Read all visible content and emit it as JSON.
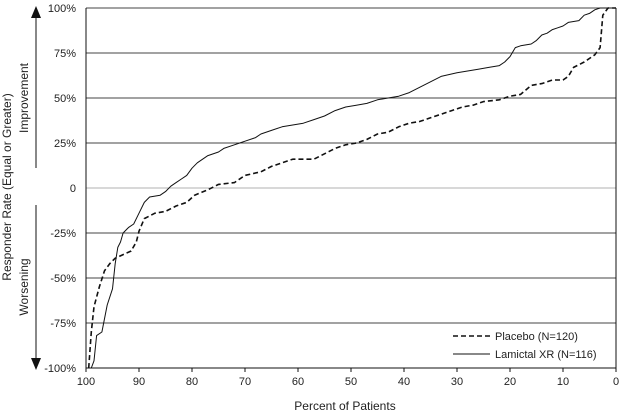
{
  "chart_data": {
    "type": "line",
    "xlabel": "Percent of Patients",
    "ylabel": "Responder Rate (Equal or Greater)",
    "side_labels": {
      "top": "Improvement",
      "bottom": "Worsening"
    },
    "x_reversed": true,
    "xlim": [
      100,
      0
    ],
    "ylim": [
      -100,
      100
    ],
    "x_ticks": [
      {
        "value": 100,
        "label": "100"
      },
      {
        "value": 90,
        "label": "90"
      },
      {
        "value": 80,
        "label": "80"
      },
      {
        "value": 70,
        "label": "70"
      },
      {
        "value": 60,
        "label": "60"
      },
      {
        "value": 50,
        "label": "50"
      },
      {
        "value": 40,
        "label": "40"
      },
      {
        "value": 30,
        "label": "30"
      },
      {
        "value": 20,
        "label": "20"
      },
      {
        "value": 10,
        "label": "10"
      },
      {
        "value": 0,
        "label": "0"
      }
    ],
    "y_ticks": [
      {
        "value": 100,
        "label": "100%"
      },
      {
        "value": 75,
        "label": "75%"
      },
      {
        "value": 50,
        "label": "50%"
      },
      {
        "value": 25,
        "label": "25%"
      },
      {
        "value": 0,
        "label": "0"
      },
      {
        "value": -25,
        "label": "-25%"
      },
      {
        "value": -50,
        "label": "-50%"
      },
      {
        "value": -75,
        "label": "-75%"
      },
      {
        "value": -100,
        "label": "-100%"
      }
    ],
    "grid": "horizontal",
    "legend_position": "bottom-right",
    "series": [
      {
        "name": "Placebo (N=120)",
        "style": "dashed",
        "color": "#111111",
        "points": [
          [
            99.5,
            -100
          ],
          [
            99,
            -80
          ],
          [
            98.5,
            -66
          ],
          [
            97.5,
            -55
          ],
          [
            96.5,
            -46
          ],
          [
            95.5,
            -42
          ],
          [
            94.5,
            -39
          ],
          [
            93,
            -37
          ],
          [
            91.5,
            -35
          ],
          [
            90.5,
            -30
          ],
          [
            90,
            -24
          ],
          [
            89,
            -17
          ],
          [
            87,
            -14
          ],
          [
            85,
            -13
          ],
          [
            83,
            -10
          ],
          [
            81,
            -8
          ],
          [
            79.5,
            -4
          ],
          [
            77,
            -1
          ],
          [
            75,
            2
          ],
          [
            72,
            3
          ],
          [
            70,
            7
          ],
          [
            67,
            9
          ],
          [
            65,
            12
          ],
          [
            63,
            14
          ],
          [
            61,
            16
          ],
          [
            59,
            16
          ],
          [
            57,
            16
          ],
          [
            55,
            19
          ],
          [
            53,
            22
          ],
          [
            51,
            24
          ],
          [
            49,
            25
          ],
          [
            47,
            27
          ],
          [
            45,
            30
          ],
          [
            43,
            31
          ],
          [
            41,
            34
          ],
          [
            39,
            36
          ],
          [
            37,
            37
          ],
          [
            35,
            39
          ],
          [
            33,
            41
          ],
          [
            31,
            43
          ],
          [
            29,
            45
          ],
          [
            27,
            46
          ],
          [
            25,
            48
          ],
          [
            22,
            49
          ],
          [
            20,
            51
          ],
          [
            18,
            52
          ],
          [
            16,
            57
          ],
          [
            14,
            58
          ],
          [
            12,
            60
          ],
          [
            10,
            60
          ],
          [
            9,
            62
          ],
          [
            8,
            67
          ],
          [
            6,
            70
          ],
          [
            4,
            74
          ],
          [
            3,
            78
          ],
          [
            2.5,
            96
          ],
          [
            1.5,
            100
          ],
          [
            0,
            100
          ]
        ]
      },
      {
        "name": "Lamictal XR (N=116)",
        "style": "solid",
        "color": "#111111",
        "points": [
          [
            99,
            -100
          ],
          [
            98.5,
            -96
          ],
          [
            98,
            -82
          ],
          [
            97,
            -80
          ],
          [
            96,
            -65
          ],
          [
            95,
            -56
          ],
          [
            94.5,
            -42
          ],
          [
            94,
            -33
          ],
          [
            93.5,
            -30
          ],
          [
            93,
            -25
          ],
          [
            92,
            -22
          ],
          [
            91,
            -20
          ],
          [
            90,
            -14
          ],
          [
            89,
            -8
          ],
          [
            88,
            -5
          ],
          [
            86,
            -4
          ],
          [
            85,
            -2
          ],
          [
            84,
            1
          ],
          [
            83,
            3
          ],
          [
            82,
            5
          ],
          [
            81,
            7
          ],
          [
            80,
            11
          ],
          [
            79,
            14
          ],
          [
            78,
            16
          ],
          [
            77,
            18
          ],
          [
            75,
            20
          ],
          [
            74,
            22
          ],
          [
            72,
            24
          ],
          [
            71,
            25
          ],
          [
            70,
            26
          ],
          [
            68,
            28
          ],
          [
            67,
            30
          ],
          [
            65,
            32
          ],
          [
            63,
            34
          ],
          [
            61,
            35
          ],
          [
            59,
            36
          ],
          [
            57,
            38
          ],
          [
            55,
            40
          ],
          [
            53,
            43
          ],
          [
            51,
            45
          ],
          [
            49,
            46
          ],
          [
            47,
            47
          ],
          [
            45,
            49
          ],
          [
            43,
            50
          ],
          [
            41,
            51
          ],
          [
            39,
            53
          ],
          [
            37,
            56
          ],
          [
            35,
            59
          ],
          [
            33,
            62
          ],
          [
            30,
            64
          ],
          [
            28,
            65
          ],
          [
            26,
            66
          ],
          [
            24,
            67
          ],
          [
            22,
            68
          ],
          [
            21,
            70
          ],
          [
            20,
            73
          ],
          [
            19,
            78
          ],
          [
            18,
            79
          ],
          [
            16,
            80
          ],
          [
            15,
            82
          ],
          [
            14,
            85
          ],
          [
            13,
            86
          ],
          [
            12,
            88
          ],
          [
            11,
            89
          ],
          [
            10,
            90
          ],
          [
            9,
            92
          ],
          [
            7,
            93
          ],
          [
            6,
            96
          ],
          [
            5,
            97
          ],
          [
            4,
            99
          ],
          [
            3,
            100
          ],
          [
            0,
            100
          ]
        ]
      }
    ]
  }
}
